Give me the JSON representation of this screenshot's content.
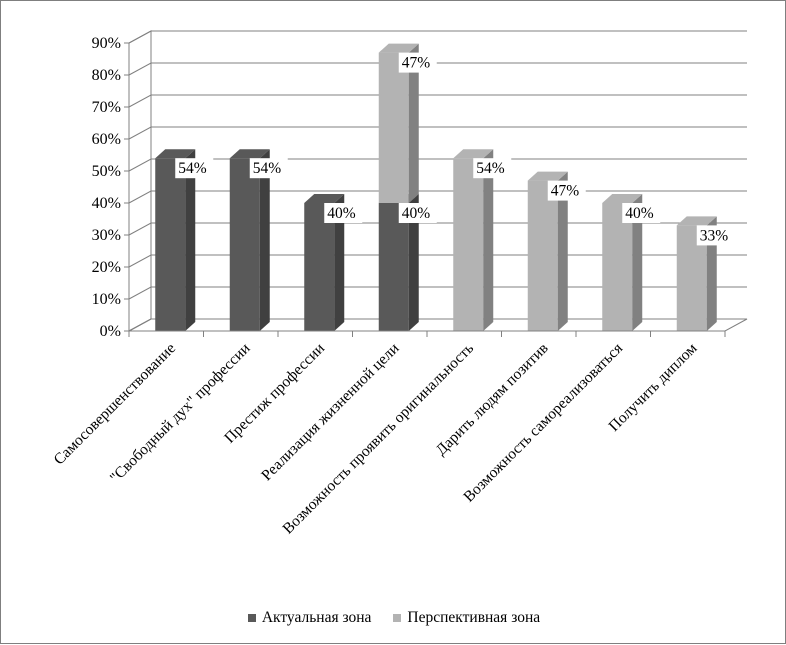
{
  "chart_data": {
    "type": "bar",
    "stacked": true,
    "three_d": true,
    "categories": [
      "Самосовершенствование",
      "\"Свободный дух\" профессии",
      "Престиж профессии",
      "Реализация жизненной цели",
      "Возможность проявить оригинальность",
      "Дарить людям позитив",
      "Возможность самореализоваться",
      "Получить диплом"
    ],
    "series": [
      {
        "name": "Актуальная зона",
        "color": "#595959",
        "values": [
          54,
          54,
          40,
          40,
          0,
          0,
          0,
          0
        ],
        "labels": [
          "54%",
          "54%",
          "40%",
          "40%",
          "",
          "",
          "",
          ""
        ]
      },
      {
        "name": "Перспективная зона",
        "color": "#b3b3b3",
        "values": [
          0,
          0,
          0,
          47,
          54,
          47,
          40,
          33
        ],
        "labels": [
          "",
          "",
          "",
          "47%",
          "54%",
          "47%",
          "40%",
          "33%"
        ]
      }
    ],
    "ylim": [
      0,
      90
    ],
    "yticks": [
      "0%",
      "10%",
      "20%",
      "30%",
      "40%",
      "50%",
      "60%",
      "70%",
      "80%",
      "90%"
    ],
    "grid": true,
    "legend_position": "bottom"
  }
}
